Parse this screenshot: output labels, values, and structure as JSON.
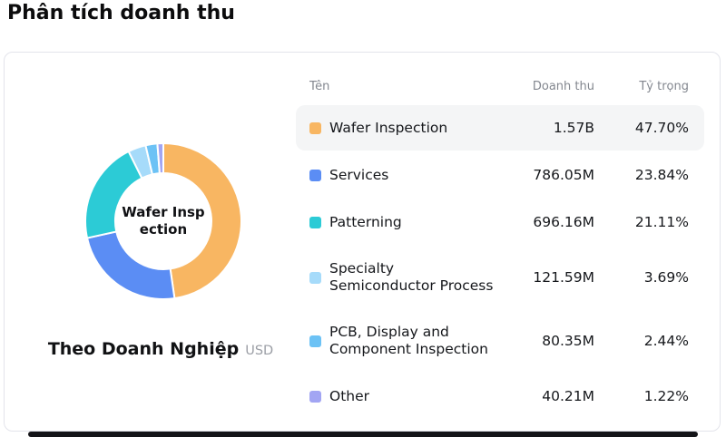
{
  "page": {
    "title": "Phân tích doanh thu"
  },
  "table": {
    "headers": {
      "name": "Tên",
      "revenue": "Doanh thu",
      "share": "Tỷ trọng"
    }
  },
  "chart_data": {
    "type": "pie",
    "subtype": "donut",
    "title": "Theo Doanh Nghiệp",
    "unit": "USD",
    "center_label_lines": [
      "Wafer Insp",
      "ection"
    ],
    "start_angle_deg": 0,
    "direction": "clockwise",
    "segments": [
      {
        "label": "Wafer Inspection",
        "revenue": "1.57B",
        "share": "47.70%",
        "value": 47.7,
        "color": "#F8B662",
        "highlighted": true
      },
      {
        "label": "Services",
        "revenue": "786.05M",
        "share": "23.84%",
        "value": 23.84,
        "color": "#5B8DF4",
        "highlighted": false
      },
      {
        "label": "Patterning",
        "revenue": "696.16M",
        "share": "21.11%",
        "value": 21.11,
        "color": "#2CCBD6",
        "highlighted": false
      },
      {
        "label": "Specialty Semiconductor Process",
        "revenue": "121.59M",
        "share": "3.69%",
        "value": 3.69,
        "color": "#A6DBFA",
        "highlighted": false
      },
      {
        "label": "PCB, Display and Component Inspection",
        "revenue": "80.35M",
        "share": "2.44%",
        "value": 2.44,
        "color": "#6CC2F5",
        "highlighted": false
      },
      {
        "label": "Other",
        "revenue": "40.21M",
        "share": "1.22%",
        "value": 1.22,
        "color": "#A2A5F3",
        "highlighted": false
      }
    ]
  }
}
